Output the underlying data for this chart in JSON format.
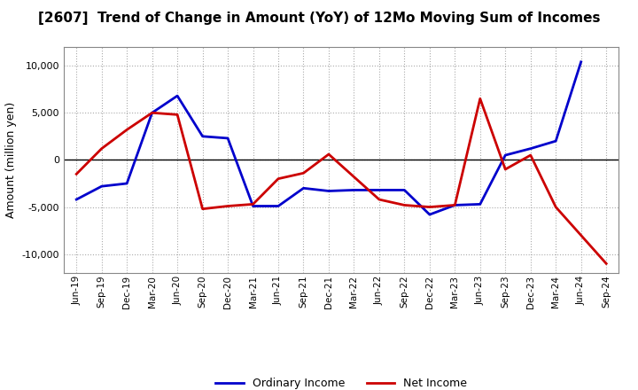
{
  "title": "[2607]  Trend of Change in Amount (YoY) of 12Mo Moving Sum of Incomes",
  "ylabel": "Amount (million yen)",
  "x_labels": [
    "Jun-19",
    "Sep-19",
    "Dec-19",
    "Mar-20",
    "Jun-20",
    "Sep-20",
    "Dec-20",
    "Mar-21",
    "Jun-21",
    "Sep-21",
    "Dec-21",
    "Mar-22",
    "Jun-22",
    "Sep-22",
    "Dec-22",
    "Mar-23",
    "Jun-23",
    "Sep-23",
    "Dec-23",
    "Mar-24",
    "Jun-24",
    "Sep-24"
  ],
  "ordinary_income": [
    -4200,
    -2800,
    -2500,
    5000,
    6800,
    2500,
    2300,
    -4900,
    -4900,
    -3000,
    -3300,
    -3200,
    -3200,
    -3200,
    -5800,
    -4800,
    -4700,
    500,
    1200,
    2000,
    10400,
    null
  ],
  "net_income": [
    -1500,
    1200,
    3200,
    5000,
    4800,
    -5200,
    -4900,
    -4700,
    -2000,
    -1400,
    600,
    -1800,
    -4200,
    -4800,
    -5000,
    -4800,
    6500,
    -1000,
    500,
    -5000,
    null,
    -11000
  ],
  "ordinary_income_color": "#0000cc",
  "net_income_color": "#cc0000",
  "ylim": [
    -12000,
    12000
  ],
  "yticks": [
    -10000,
    -5000,
    0,
    5000,
    10000
  ],
  "background_color": "#ffffff",
  "grid_color": "#aaaaaa",
  "legend_ordinary": "Ordinary Income",
  "legend_net": "Net Income"
}
